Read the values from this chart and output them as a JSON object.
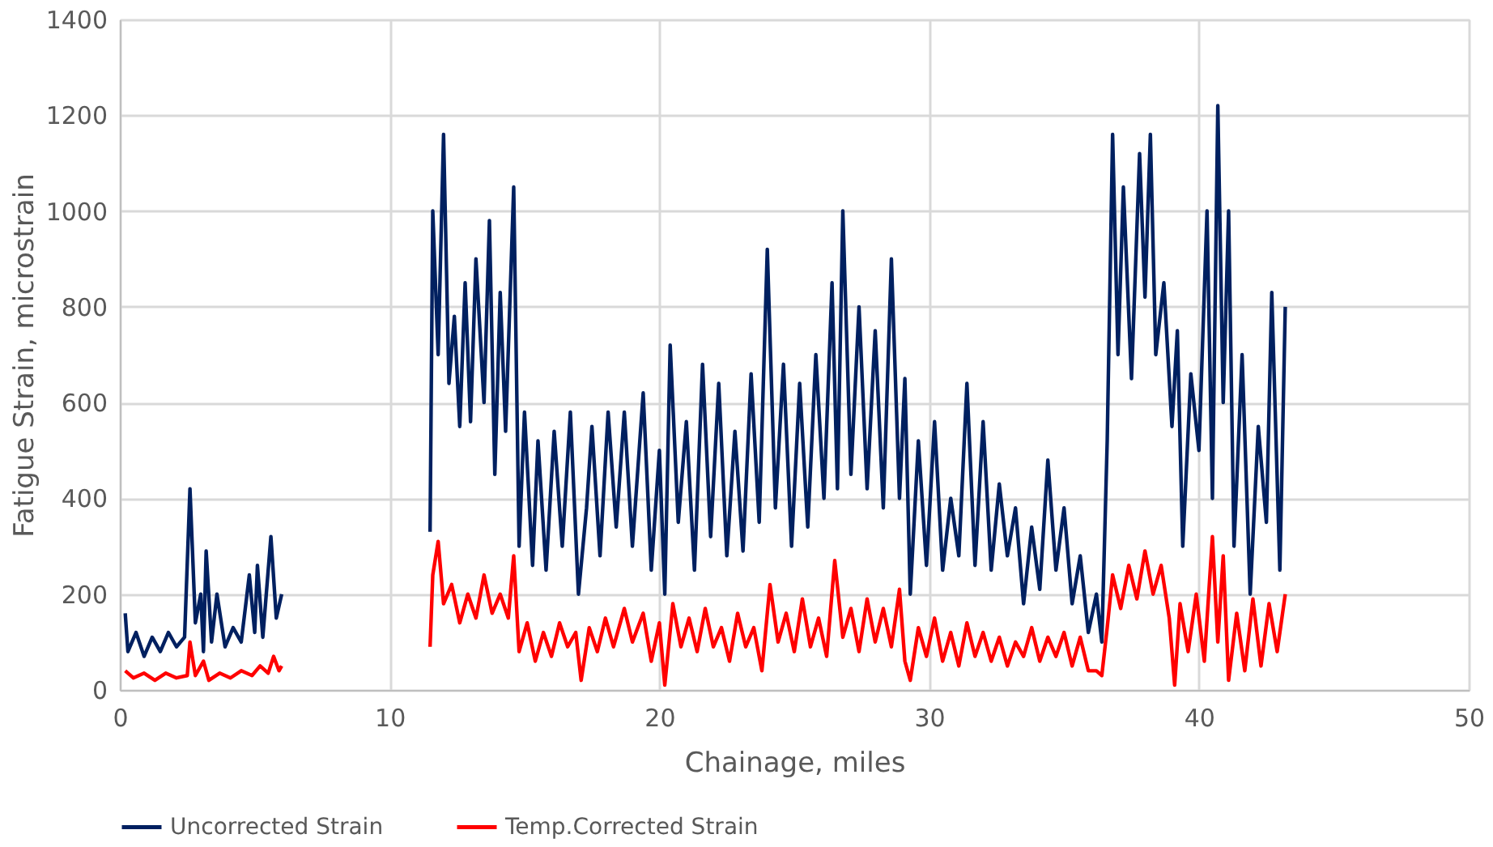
{
  "chart_data": {
    "type": "line",
    "xlabel": "Chainage, miles",
    "ylabel": "Fatigue Strain, microstrain",
    "xlim": [
      0,
      50
    ],
    "xticks": [
      0,
      10,
      20,
      30,
      40,
      50
    ],
    "ylim": [
      0,
      1400
    ],
    "yticks": [
      0,
      200,
      400,
      600,
      800,
      1000,
      1200,
      1400
    ],
    "grid": true,
    "legend": "bottom",
    "marker": "none",
    "line_style": "solid",
    "series": [
      {
        "name": "Uncorrected Strain",
        "color": "#002060",
        "x": [
          0.2,
          0.3,
          0.6,
          0.9,
          1.2,
          1.5,
          1.8,
          2.1,
          2.4,
          2.6,
          2.8,
          3.0,
          3.1,
          3.2,
          3.4,
          3.6,
          3.9,
          4.2,
          4.5,
          4.8,
          5.0,
          5.1,
          5.3,
          5.6,
          5.8,
          6.0,
          6.1,
          11.5,
          11.6,
          11.8,
          12.0,
          12.2,
          12.4,
          12.6,
          12.8,
          13.0,
          13.2,
          13.5,
          13.7,
          13.9,
          14.1,
          14.3,
          14.6,
          14.8,
          15.0,
          15.3,
          15.5,
          15.8,
          16.1,
          16.4,
          16.7,
          17.0,
          17.3,
          17.5,
          17.8,
          18.1,
          18.4,
          18.7,
          19.0,
          19.4,
          19.7,
          20.0,
          20.2,
          20.4,
          20.7,
          21.0,
          21.3,
          21.6,
          21.9,
          22.2,
          22.5,
          22.8,
          23.1,
          23.4,
          23.7,
          24.0,
          24.3,
          24.6,
          24.9,
          25.2,
          25.5,
          25.8,
          26.1,
          26.4,
          26.6,
          26.8,
          27.1,
          27.4,
          27.7,
          28.0,
          28.3,
          28.6,
          28.9,
          29.1,
          29.3,
          29.6,
          29.9,
          30.2,
          30.5,
          30.8,
          31.1,
          31.4,
          31.7,
          32.0,
          32.3,
          32.6,
          32.9,
          33.2,
          33.5,
          33.8,
          34.1,
          34.4,
          34.7,
          35.0,
          35.3,
          35.6,
          35.9,
          36.2,
          36.4,
          36.6,
          36.8,
          37.0,
          37.2,
          37.5,
          37.8,
          38.0,
          38.2,
          38.4,
          38.7,
          39.0,
          39.2,
          39.4,
          39.7,
          40.0,
          40.3,
          40.5,
          40.7,
          40.9,
          41.1,
          41.3,
          41.6,
          41.9,
          42.2,
          42.5,
          42.7,
          43.0,
          43.2
        ],
        "values": [
          160,
          80,
          120,
          70,
          110,
          80,
          120,
          90,
          110,
          420,
          140,
          200,
          80,
          290,
          100,
          200,
          90,
          130,
          100,
          240,
          120,
          260,
          110,
          320,
          150,
          200,
          null,
          330,
          1000,
          700,
          1160,
          640,
          780,
          550,
          850,
          560,
          900,
          600,
          980,
          450,
          830,
          540,
          1050,
          300,
          580,
          260,
          520,
          250,
          540,
          300,
          580,
          200,
          380,
          550,
          280,
          580,
          340,
          580,
          300,
          620,
          250,
          500,
          200,
          720,
          350,
          560,
          250,
          680,
          320,
          640,
          280,
          540,
          290,
          660,
          350,
          920,
          380,
          680,
          300,
          640,
          340,
          700,
          400,
          850,
          420,
          1000,
          450,
          800,
          420,
          750,
          380,
          900,
          400,
          650,
          200,
          520,
          260,
          560,
          250,
          400,
          280,
          640,
          260,
          560,
          250,
          430,
          280,
          380,
          180,
          340,
          210,
          480,
          250,
          380,
          180,
          280,
          120,
          200,
          100,
          520,
          1160,
          700,
          1050,
          650,
          1120,
          820,
          1160,
          700,
          850,
          550,
          750,
          300,
          660,
          500,
          1000,
          400,
          1220,
          600,
          1000,
          300,
          700,
          200,
          550,
          350,
          830,
          250,
          800
        ]
      },
      {
        "name": "Temp.Corrected Strain",
        "color": "#ff0000",
        "x": [
          0.2,
          0.5,
          0.9,
          1.3,
          1.7,
          2.1,
          2.5,
          2.6,
          2.8,
          3.1,
          3.3,
          3.7,
          4.1,
          4.5,
          4.9,
          5.2,
          5.5,
          5.7,
          5.9,
          6.0,
          6.1,
          11.5,
          11.6,
          11.8,
          12.0,
          12.3,
          12.6,
          12.9,
          13.2,
          13.5,
          13.8,
          14.1,
          14.4,
          14.6,
          14.8,
          15.1,
          15.4,
          15.7,
          16.0,
          16.3,
          16.6,
          16.9,
          17.1,
          17.4,
          17.7,
          18.0,
          18.3,
          18.7,
          19.0,
          19.4,
          19.7,
          20.0,
          20.2,
          20.5,
          20.8,
          21.1,
          21.4,
          21.7,
          22.0,
          22.3,
          22.6,
          22.9,
          23.2,
          23.5,
          23.8,
          24.1,
          24.4,
          24.7,
          25.0,
          25.3,
          25.6,
          25.9,
          26.2,
          26.5,
          26.8,
          27.1,
          27.4,
          27.7,
          28.0,
          28.3,
          28.6,
          28.9,
          29.1,
          29.3,
          29.6,
          29.9,
          30.2,
          30.5,
          30.8,
          31.1,
          31.4,
          31.7,
          32.0,
          32.3,
          32.6,
          32.9,
          33.2,
          33.5,
          33.8,
          34.1,
          34.4,
          34.7,
          35.0,
          35.3,
          35.6,
          35.9,
          36.2,
          36.4,
          36.6,
          36.8,
          37.1,
          37.4,
          37.7,
          38.0,
          38.3,
          38.6,
          38.9,
          39.1,
          39.3,
          39.6,
          39.9,
          40.2,
          40.5,
          40.7,
          40.9,
          41.1,
          41.4,
          41.7,
          42.0,
          42.3,
          42.6,
          42.9,
          43.2
        ],
        "values": [
          40,
          25,
          35,
          20,
          35,
          25,
          30,
          100,
          30,
          60,
          20,
          35,
          25,
          40,
          30,
          50,
          35,
          70,
          40,
          50,
          null,
          90,
          240,
          310,
          180,
          220,
          140,
          200,
          150,
          240,
          160,
          200,
          150,
          280,
          80,
          140,
          60,
          120,
          70,
          140,
          90,
          120,
          20,
          130,
          80,
          150,
          90,
          170,
          100,
          160,
          60,
          140,
          10,
          180,
          90,
          150,
          80,
          170,
          90,
          130,
          60,
          160,
          90,
          130,
          40,
          220,
          100,
          160,
          80,
          190,
          90,
          150,
          70,
          270,
          110,
          170,
          80,
          190,
          100,
          170,
          90,
          210,
          60,
          20,
          130,
          70,
          150,
          60,
          120,
          50,
          140,
          70,
          120,
          60,
          110,
          50,
          100,
          70,
          130,
          60,
          110,
          70,
          120,
          50,
          110,
          40,
          40,
          30,
          130,
          240,
          170,
          260,
          190,
          290,
          200,
          260,
          150,
          10,
          180,
          80,
          200,
          60,
          320,
          100,
          280,
          20,
          160,
          40,
          190,
          50,
          180,
          80,
          200
        ]
      }
    ]
  }
}
